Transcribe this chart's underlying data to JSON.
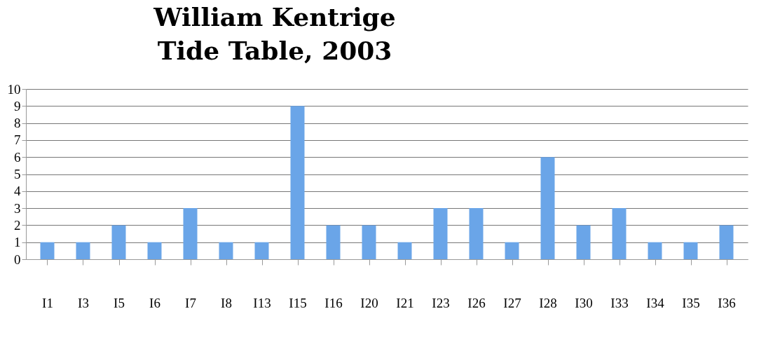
{
  "chart_data": {
    "type": "bar",
    "title": "William Kentrige\nTide Table, 2003",
    "categories": [
      "I1",
      "I3",
      "I5",
      "I6",
      "I7",
      "I8",
      "I13",
      "I15",
      "I16",
      "I20",
      "I21",
      "I23",
      "I26",
      "I27",
      "I28",
      "I30",
      "I33",
      "I34",
      "I35",
      "I36"
    ],
    "values": [
      1,
      1,
      2,
      1,
      3,
      1,
      1,
      9,
      2,
      2,
      1,
      3,
      3,
      1,
      6,
      2,
      3,
      1,
      1,
      2
    ],
    "color": "#6aa5e8",
    "ylim": [
      0,
      10
    ],
    "yticks": [
      0,
      1,
      2,
      3,
      4,
      5,
      6,
      7,
      8,
      9,
      10
    ],
    "grid": "y"
  }
}
